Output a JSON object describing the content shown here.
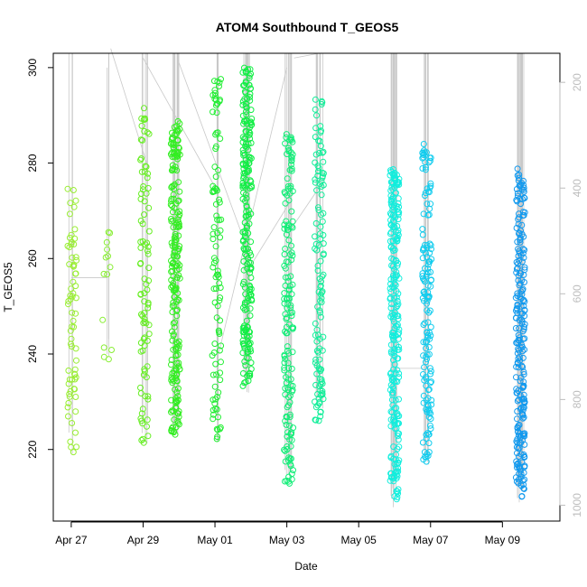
{
  "chart_data": {
    "type": "scatter",
    "title": "ATOM4 Southbound T_GEOS5",
    "xlabel": "Date",
    "ylabel": "T_GEOS5",
    "x_unit": "day of month (April 27 = 27, May 1 = 31)",
    "xlim": [
      26.5,
      40.6
    ],
    "ylim": [
      205,
      303
    ],
    "x_ticks": [
      {
        "value": 27,
        "label": "Apr 27"
      },
      {
        "value": 29,
        "label": "Apr 29"
      },
      {
        "value": 31,
        "label": "May 01"
      },
      {
        "value": 33,
        "label": "May 03"
      },
      {
        "value": 35,
        "label": "May 05"
      },
      {
        "value": 37,
        "label": "May 07"
      },
      {
        "value": 39,
        "label": "May 09"
      }
    ],
    "y_ticks": [
      220,
      240,
      260,
      280,
      300
    ],
    "right_axis": {
      "description": "pressure (gray flight trace)",
      "ylim": [
        1030,
        145
      ],
      "ticks": [
        200,
        400,
        600,
        800,
        1000
      ],
      "color": "#bdbdbd"
    },
    "grid": false,
    "legend": "none",
    "clusters": [
      {
        "day": 27.02,
        "ymin": 218,
        "ymax": 276,
        "n": 70,
        "color": "#99ee33"
      },
      {
        "day": 28.0,
        "ymin": 238,
        "ymax": 266,
        "n": 14,
        "color": "#88ee33"
      },
      {
        "day": 29.05,
        "ymin": 221,
        "ymax": 292,
        "n": 90,
        "color": "#66ee22"
      },
      {
        "day": 29.9,
        "ymin": 223,
        "ymax": 289,
        "n": 220,
        "color": "#33ee22"
      },
      {
        "day": 31.05,
        "ymin": 222,
        "ymax": 300,
        "n": 100,
        "color": "#22ee33"
      },
      {
        "day": 31.9,
        "ymin": 233,
        "ymax": 300,
        "n": 220,
        "color": "#11ee44"
      },
      {
        "day": 33.05,
        "ymin": 212,
        "ymax": 287,
        "n": 160,
        "color": "#11ee77"
      },
      {
        "day": 33.9,
        "ymin": 226,
        "ymax": 294,
        "n": 120,
        "color": "#11ee99"
      },
      {
        "day": 36.0,
        "ymin": 209,
        "ymax": 279,
        "n": 250,
        "color": "#11eedd"
      },
      {
        "day": 36.9,
        "ymin": 217,
        "ymax": 284,
        "n": 150,
        "color": "#11ccee"
      },
      {
        "day": 39.5,
        "ymin": 210,
        "ymax": 279,
        "n": 230,
        "color": "#1199ee"
      }
    ],
    "trace_days": [
      27.0,
      28.0,
      29.05,
      29.9,
      31.05,
      31.9,
      33.05,
      33.9,
      36.0,
      36.9,
      39.5
    ]
  }
}
